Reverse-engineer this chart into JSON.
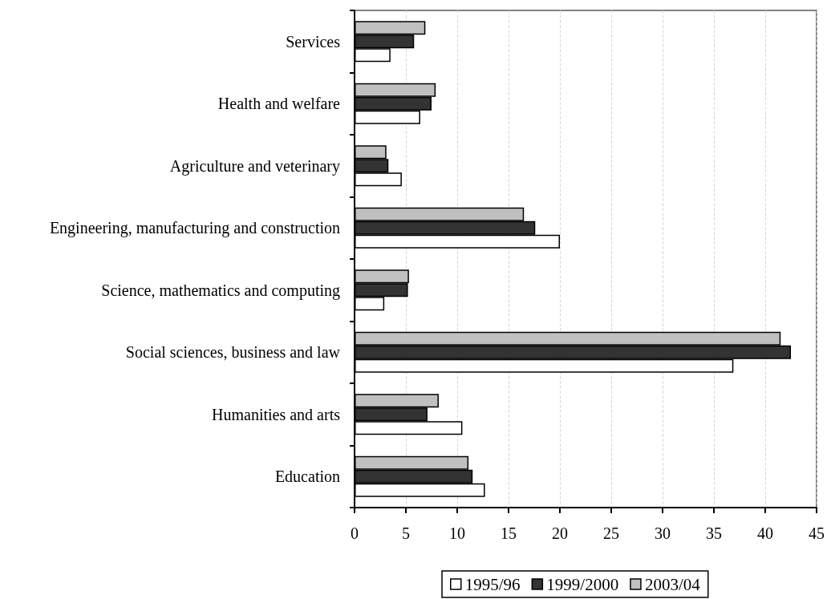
{
  "chart_data": {
    "type": "bar",
    "orientation": "horizontal",
    "categories": [
      "Services",
      "Health and welfare",
      "Agriculture and veterinary",
      "Engineering, manufacturing and construction",
      "Science, mathematics and computing",
      "Social sciences, business and law",
      "Humanities and arts",
      "Education"
    ],
    "series": [
      {
        "name": "1995/96",
        "color": "#ffffff",
        "values": [
          3.5,
          6.4,
          4.6,
          20.0,
          2.9,
          36.9,
          10.5,
          12.7
        ]
      },
      {
        "name": "1999/2000",
        "color": "#333333",
        "values": [
          5.8,
          7.5,
          3.3,
          17.6,
          5.2,
          42.5,
          7.1,
          11.5
        ]
      },
      {
        "name": "2003/04",
        "color": "#c0c0c0",
        "values": [
          6.9,
          7.9,
          3.1,
          16.5,
          5.3,
          41.5,
          8.2,
          11.1
        ]
      }
    ],
    "xlim": [
      0,
      45
    ],
    "xticks": [
      0,
      5,
      10,
      15,
      20,
      25,
      30,
      35,
      40,
      45
    ],
    "grid": "x",
    "legend": "bottom"
  }
}
